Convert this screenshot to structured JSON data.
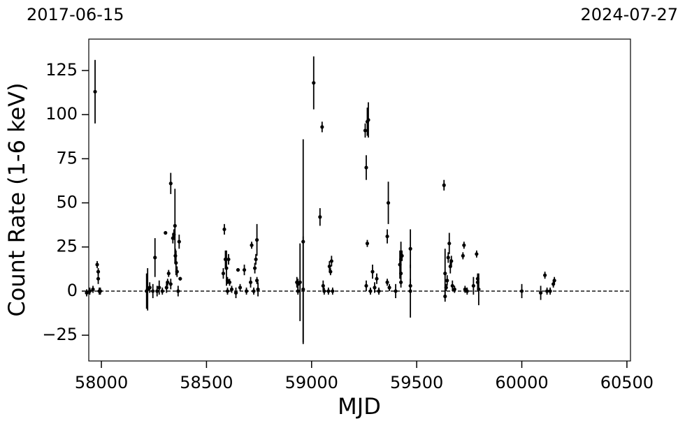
{
  "chart_data": {
    "type": "scatter",
    "top_labels": [
      "2017-06-15",
      "2024-07-27"
    ],
    "xlabel": "MJD",
    "ylabel": "Count Rate (1-6 keV)",
    "xlim": [
      57940,
      60517
    ],
    "ylim": [
      -39.6,
      142.8
    ],
    "xticks": [
      58000,
      58500,
      59000,
      59500,
      60000,
      60500
    ],
    "yticks": [
      {
        "value": -25,
        "label": "−25"
      },
      0,
      25,
      50,
      75,
      100,
      125
    ],
    "hline": 0,
    "series": [
      {
        "color": "#000000",
        "x": [
          57930,
          57945,
          57960,
          57970,
          57980,
          57985,
          57985,
          57990,
          57995,
          58215,
          58220,
          58230,
          58245,
          58255,
          58265,
          58275,
          58290,
          58305,
          58310,
          58320,
          58330,
          58340,
          58345,
          58350,
          58352,
          58355,
          58360,
          58370,
          58375,
          58365,
          58330,
          58315,
          58580,
          58585,
          58590,
          58595,
          58600,
          58605,
          58610,
          58600,
          58620,
          58640,
          58650,
          58660,
          58680,
          58690,
          58710,
          58715,
          58730,
          58735,
          58740,
          58745,
          58740,
          58725,
          58930,
          58935,
          58945,
          58960,
          58960,
          58935,
          59010,
          59040,
          59050,
          59055,
          59060,
          59080,
          59085,
          59090,
          59095,
          59100,
          59255,
          59260,
          59265,
          59270,
          59265,
          59260,
          59280,
          59290,
          59300,
          59310,
          59320,
          59360,
          59365,
          59360,
          59370,
          59400,
          59420,
          59425,
          59430,
          59425,
          59425,
          59470,
          59470,
          59470,
          59630,
          59635,
          59635,
          59640,
          59645,
          59650,
          59655,
          59660,
          59665,
          59670,
          59680,
          59720,
          59725,
          59730,
          59740,
          59770,
          59785,
          59790,
          59790,
          59795,
          60000,
          60090,
          60110,
          60120,
          60135,
          60150,
          60155
        ],
        "values": [
          -1,
          0,
          1,
          113,
          15,
          11,
          7,
          0,
          0,
          0,
          1,
          2,
          0,
          19,
          0,
          2,
          0,
          33,
          2,
          10,
          61,
          30,
          32,
          37,
          20,
          16,
          11,
          28,
          7,
          0,
          4,
          5,
          10,
          35,
          18,
          13,
          6,
          18,
          5,
          0,
          1,
          -1,
          12,
          2,
          12,
          0,
          5,
          26,
          13,
          18,
          29,
          1,
          6,
          0,
          5,
          4,
          5,
          28,
          1,
          0,
          118,
          42,
          93,
          3,
          0,
          0,
          14,
          11,
          17,
          0,
          91,
          70,
          96,
          97,
          27,
          3,
          0,
          11,
          2,
          7,
          0,
          31,
          50,
          5,
          2,
          0,
          15,
          18,
          20,
          10,
          5,
          24,
          3,
          0,
          60,
          10,
          -3,
          2,
          6,
          19,
          27,
          14,
          17,
          3,
          1,
          20,
          26,
          1,
          0,
          3,
          21,
          5,
          7,
          1,
          0,
          -1,
          9,
          0,
          0,
          4,
          6
        ],
        "errors": [
          2,
          2,
          2,
          18,
          2,
          2,
          3,
          2,
          2,
          10,
          12,
          3,
          4,
          11,
          3,
          4,
          2,
          1,
          3,
          2,
          6,
          3,
          3,
          21,
          4,
          7,
          3,
          4,
          1,
          3,
          3,
          2,
          3,
          3,
          5,
          10,
          2,
          3,
          2,
          2,
          2,
          3,
          1,
          2,
          3,
          2,
          3,
          2,
          3,
          3,
          9,
          4,
          2,
          2,
          3,
          3,
          22,
          58,
          30,
          2,
          15,
          5,
          3,
          3,
          2,
          2,
          3,
          2,
          3,
          2,
          4,
          7,
          8,
          10,
          2,
          3,
          2,
          4,
          3,
          3,
          2,
          4,
          12,
          2,
          2,
          4,
          8,
          10,
          3,
          4,
          3,
          11,
          4,
          15,
          3,
          14,
          3,
          2,
          3,
          3,
          6,
          4,
          3,
          3,
          2,
          2,
          2,
          2,
          2,
          5,
          2,
          4,
          3,
          9,
          4,
          4,
          2,
          2,
          2,
          2,
          2
        ]
      }
    ]
  }
}
